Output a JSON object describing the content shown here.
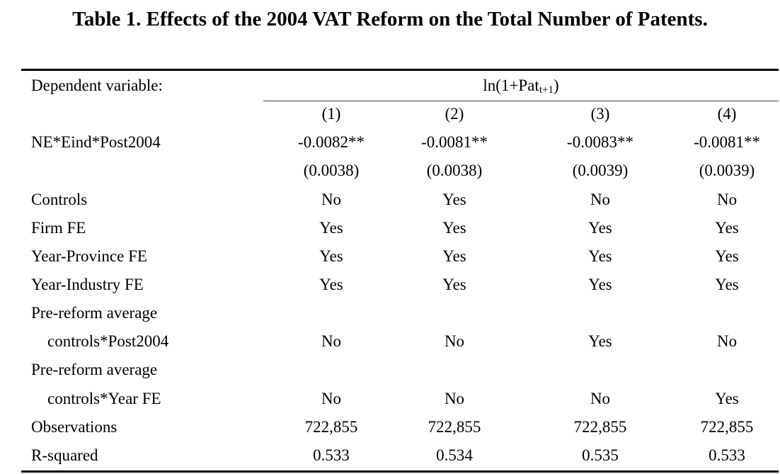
{
  "title": "Table 1. Effects of the 2004 VAT Reform on the Total Number of Patents.",
  "header": {
    "dep_label": "Dependent variable:",
    "dep_var_main": "ln(1+Pat",
    "dep_var_sub": "t+1",
    "dep_var_close": ")",
    "columns": [
      "(1)",
      "(2)",
      "(3)",
      "(4)"
    ]
  },
  "rows": [
    {
      "label": "NE*Eind*Post2004",
      "values": [
        "-0.0082**",
        "-0.0081**",
        "-0.0083**",
        "-0.0081**"
      ]
    },
    {
      "label": "",
      "values": [
        "(0.0038)",
        "(0.0038)",
        "(0.0039)",
        "(0.0039)"
      ]
    },
    {
      "label": "Controls",
      "values": [
        "No",
        "Yes",
        "No",
        "No"
      ]
    },
    {
      "label": "Firm FE",
      "values": [
        "Yes",
        "Yes",
        "Yes",
        "Yes"
      ]
    },
    {
      "label": "Year-Province FE",
      "values": [
        "Yes",
        "Yes",
        "Yes",
        "Yes"
      ]
    },
    {
      "label": "Year-Industry FE",
      "values": [
        "Yes",
        "Yes",
        "Yes",
        "Yes"
      ]
    },
    {
      "label": "Pre-reform average",
      "values": [
        "",
        "",
        "",
        ""
      ]
    },
    {
      "label": "controls*Post2004",
      "values": [
        "No",
        "No",
        "Yes",
        "No"
      ]
    },
    {
      "label": "Pre-reform average",
      "values": [
        "",
        "",
        "",
        ""
      ]
    },
    {
      "label": "controls*Year FE",
      "values": [
        "No",
        "No",
        "No",
        "Yes"
      ]
    },
    {
      "label": "Observations",
      "values": [
        "722,855",
        "722,855",
        "722,855",
        "722,855"
      ]
    },
    {
      "label": "R-squared",
      "values": [
        "0.533",
        "0.534",
        "0.535",
        "0.533"
      ]
    }
  ]
}
